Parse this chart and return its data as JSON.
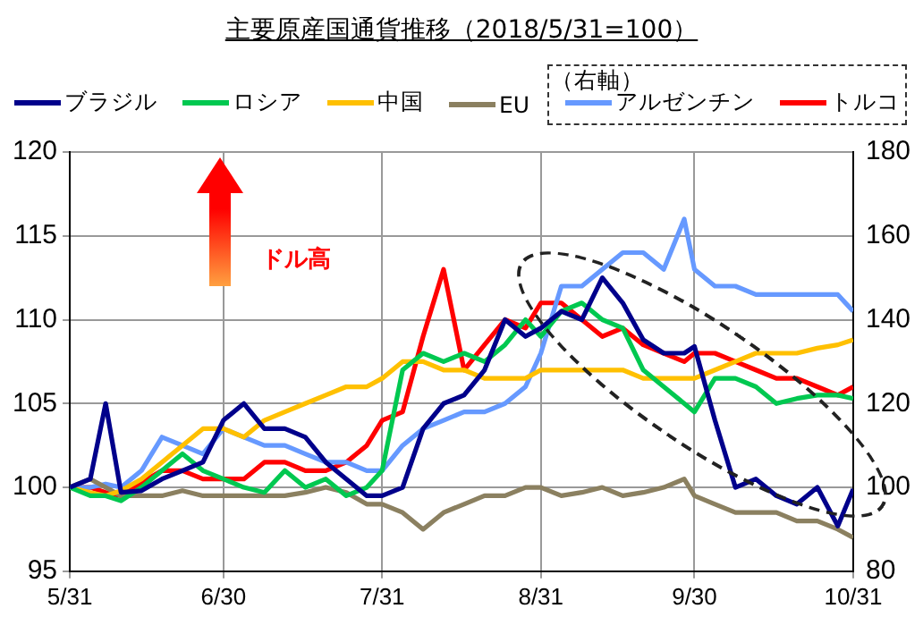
{
  "chart_data": {
    "type": "line",
    "title": "主要原産国通貨推移（2018/5/31=100）",
    "x": [
      "2018-05-31",
      "2018-06-04",
      "2018-06-07",
      "2018-06-10",
      "2018-06-14",
      "2018-06-18",
      "2018-06-22",
      "2018-06-26",
      "2018-06-30",
      "2018-07-04",
      "2018-07-08",
      "2018-07-12",
      "2018-07-16",
      "2018-07-20",
      "2018-07-24",
      "2018-07-28",
      "2018-07-31",
      "2018-08-04",
      "2018-08-08",
      "2018-08-12",
      "2018-08-16",
      "2018-08-20",
      "2018-08-24",
      "2018-08-28",
      "2018-08-31",
      "2018-09-04",
      "2018-09-08",
      "2018-09-12",
      "2018-09-16",
      "2018-09-20",
      "2018-09-24",
      "2018-09-28",
      "2018-09-30",
      "2018-10-04",
      "2018-10-08",
      "2018-10-12",
      "2018-10-16",
      "2018-10-20",
      "2018-10-24",
      "2018-10-28",
      "2018-10-31"
    ],
    "series": [
      {
        "name": "ブラジル",
        "color": "#00008b",
        "values": [
          100,
          100.5,
          105,
          99.7,
          99.8,
          100.5,
          101,
          101.5,
          104,
          105,
          103.5,
          103.5,
          103,
          101.5,
          100.5,
          99.5,
          99.5,
          100,
          103.5,
          105,
          105.5,
          107,
          110,
          109,
          109.5,
          110.5,
          110,
          112.5,
          111,
          108.8,
          108,
          108,
          108.4,
          104,
          100,
          100.5,
          99.5,
          99,
          100,
          97.7,
          99.9
        ]
      },
      {
        "name": "ロシア",
        "color": "#00c850",
        "values": [
          100,
          99.5,
          99.5,
          99.2,
          100,
          101,
          102,
          101,
          100.5,
          100,
          99.7,
          101,
          100,
          100.5,
          99.5,
          100,
          101,
          107,
          108,
          107.5,
          108,
          107.5,
          108.5,
          110,
          109,
          110.5,
          111,
          110,
          109.5,
          107,
          106,
          105,
          104.5,
          106.5,
          106.5,
          106,
          105,
          105.3,
          105.5,
          105.5,
          105.3
        ]
      },
      {
        "name": "中国",
        "color": "#ffc000",
        "values": [
          100,
          99.7,
          99.5,
          99.8,
          100.5,
          101.5,
          102.5,
          103.5,
          103.5,
          103,
          104,
          104.5,
          105,
          105.5,
          106,
          106,
          106.5,
          107.5,
          107.5,
          107,
          107,
          106.5,
          106.5,
          106.5,
          107,
          107,
          107,
          107,
          107,
          106.5,
          106.5,
          106.5,
          106.5,
          107,
          107.5,
          108,
          108,
          108,
          108.3,
          108.5,
          108.8
        ]
      },
      {
        "name": "EU",
        "color": "#8b8060",
        "values": [
          100,
          100.5,
          100,
          99.5,
          99.5,
          99.5,
          99.8,
          99.5,
          99.5,
          99.5,
          99.5,
          99.5,
          99.7,
          100,
          99.7,
          99,
          99,
          98.5,
          97.5,
          98.5,
          99,
          99.5,
          99.5,
          100,
          100,
          99.5,
          99.7,
          100,
          99.5,
          99.7,
          100,
          100.5,
          99.5,
          99,
          98.5,
          98.5,
          98.5,
          98,
          98,
          97.5,
          97
        ]
      },
      {
        "name": "アルゼンチン",
        "color": "#6699ff",
        "axis": "y2",
        "values": [
          100,
          100,
          100.8,
          100,
          104,
          112,
          110,
          108,
          114,
          112,
          110,
          110,
          108,
          106,
          106,
          104,
          104,
          110,
          114,
          116,
          118,
          118,
          120,
          124,
          132,
          148,
          148,
          152,
          156,
          156,
          152,
          164,
          152,
          148,
          148,
          146,
          146,
          146,
          146,
          146,
          142
        ]
      },
      {
        "name": "トルコ",
        "color": "#ff0000",
        "axis": "y2",
        "values": [
          100,
          100,
          98.8,
          98,
          101.2,
          104,
          104,
          102,
          102,
          102,
          106,
          106,
          104,
          104,
          106,
          110,
          116,
          118,
          136,
          152,
          128,
          134,
          140,
          138,
          144,
          144,
          140,
          136,
          138,
          134,
          132,
          130,
          132,
          132,
          130,
          128,
          126,
          126,
          124,
          122,
          124
        ]
      }
    ],
    "xlim": [
      "2018-05-31",
      "2018-10-31"
    ],
    "xticks": [
      {
        "value": "2018-05-31",
        "label": "5/31"
      },
      {
        "value": "2018-06-30",
        "label": "6/30"
      },
      {
        "value": "2018-07-31",
        "label": "7/31"
      },
      {
        "value": "2018-08-31",
        "label": "8/31"
      },
      {
        "value": "2018-09-30",
        "label": "9/30"
      },
      {
        "value": "2018-10-31",
        "label": "10/31"
      }
    ],
    "ylim": [
      95,
      120
    ],
    "yticks": [
      95,
      100,
      105,
      110,
      115,
      120
    ],
    "y2lim": [
      80,
      180
    ],
    "y2ticks": [
      80,
      100,
      120,
      140,
      160,
      180
    ],
    "annotations": [
      "ドル高",
      "（右軸）"
    ],
    "grid": true,
    "legend": "top",
    "marker": "none",
    "line_style": "solid"
  }
}
